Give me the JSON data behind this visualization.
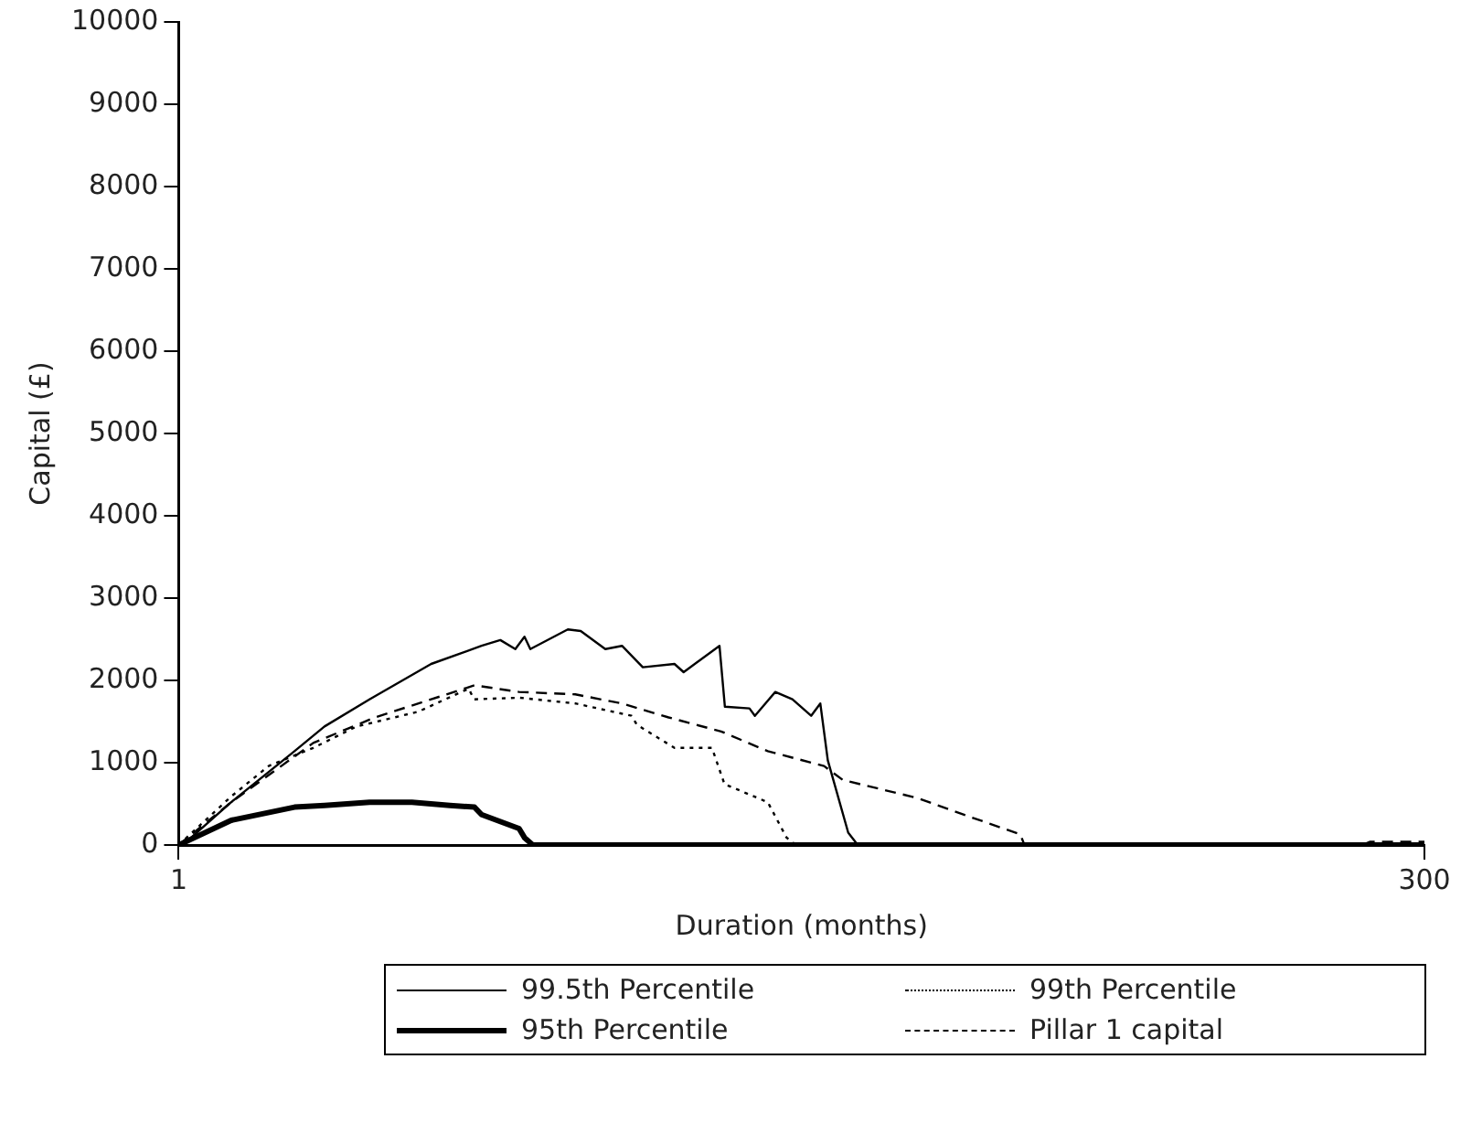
{
  "chart_data": {
    "type": "line",
    "xlabel": "Duration (months)",
    "ylabel": "Capital (£)",
    "xlim": [
      1,
      300
    ],
    "xticks": [
      1,
      300
    ],
    "ylim": [
      0,
      10000
    ],
    "yticks": [
      0,
      1000,
      2000,
      3000,
      4000,
      5000,
      6000,
      7000,
      8000,
      9000,
      10000
    ],
    "grid": false,
    "legend": "bottom",
    "marker": "none",
    "series": [
      {
        "name": "99.5th Percentile",
        "color": "#000000",
        "line_style": "solid",
        "x": [
          1,
          2,
          13.6,
          28.8,
          36,
          46.8,
          61.6,
          73.7,
          78.2,
          81.8,
          84,
          85.4,
          94.4,
          97.5,
          103.4,
          107.4,
          112.4,
          120,
          122.2,
          130.8,
          132.1,
          138,
          139.3,
          144.2,
          148.3,
          152.8,
          155,
          156.8,
          161.7,
          164,
          300
        ],
        "values": [
          0,
          0,
          520,
          1140,
          1440,
          1770,
          2200,
          2420,
          2490,
          2380,
          2530,
          2380,
          2620,
          2600,
          2380,
          2420,
          2160,
          2200,
          2100,
          2420,
          1680,
          1660,
          1570,
          1860,
          1770,
          1570,
          1720,
          1030,
          150,
          0,
          0
        ]
      },
      {
        "name": "99th Percentile",
        "color": "#000000",
        "line_style": "dotted",
        "x": [
          1,
          13.6,
          22.6,
          33.3,
          43.7,
          58.5,
          70.6,
          71.9,
          82.7,
          96.2,
          109.7,
          111,
          120,
          129,
          132,
          142.4,
          146.9,
          149.2,
          300
        ],
        "values": [
          0,
          590,
          960,
          1180,
          1440,
          1620,
          1900,
          1770,
          1790,
          1720,
          1570,
          1460,
          1180,
          1180,
          740,
          520,
          90,
          0,
          0
        ]
      },
      {
        "name": "95th Percentile",
        "color": "#000000",
        "line_style": "solid",
        "x": [
          1,
          13.6,
          28.8,
          36,
          46.8,
          57,
          66.1,
          72,
          73.7,
          82.7,
          84,
          86,
          300
        ],
        "values": [
          0,
          300,
          460,
          480,
          520,
          520,
          480,
          460,
          370,
          200,
          90,
          0,
          0
        ]
      },
      {
        "name": "Pillar 1 capital",
        "color": "#000000",
        "line_style": "dashed",
        "x": [
          1,
          13.6,
          33.3,
          48.1,
          72,
          82.7,
          96.2,
          107.4,
          118.6,
          131.2,
          142.4,
          155.9,
          160.4,
          178.4,
          190.5,
          203,
          204,
          285,
          287,
          300
        ],
        "values": [
          0,
          520,
          1240,
          1550,
          1940,
          1860,
          1830,
          1720,
          1550,
          1380,
          1140,
          960,
          790,
          570,
          350,
          130,
          0,
          0,
          40,
          40
        ]
      }
    ]
  }
}
